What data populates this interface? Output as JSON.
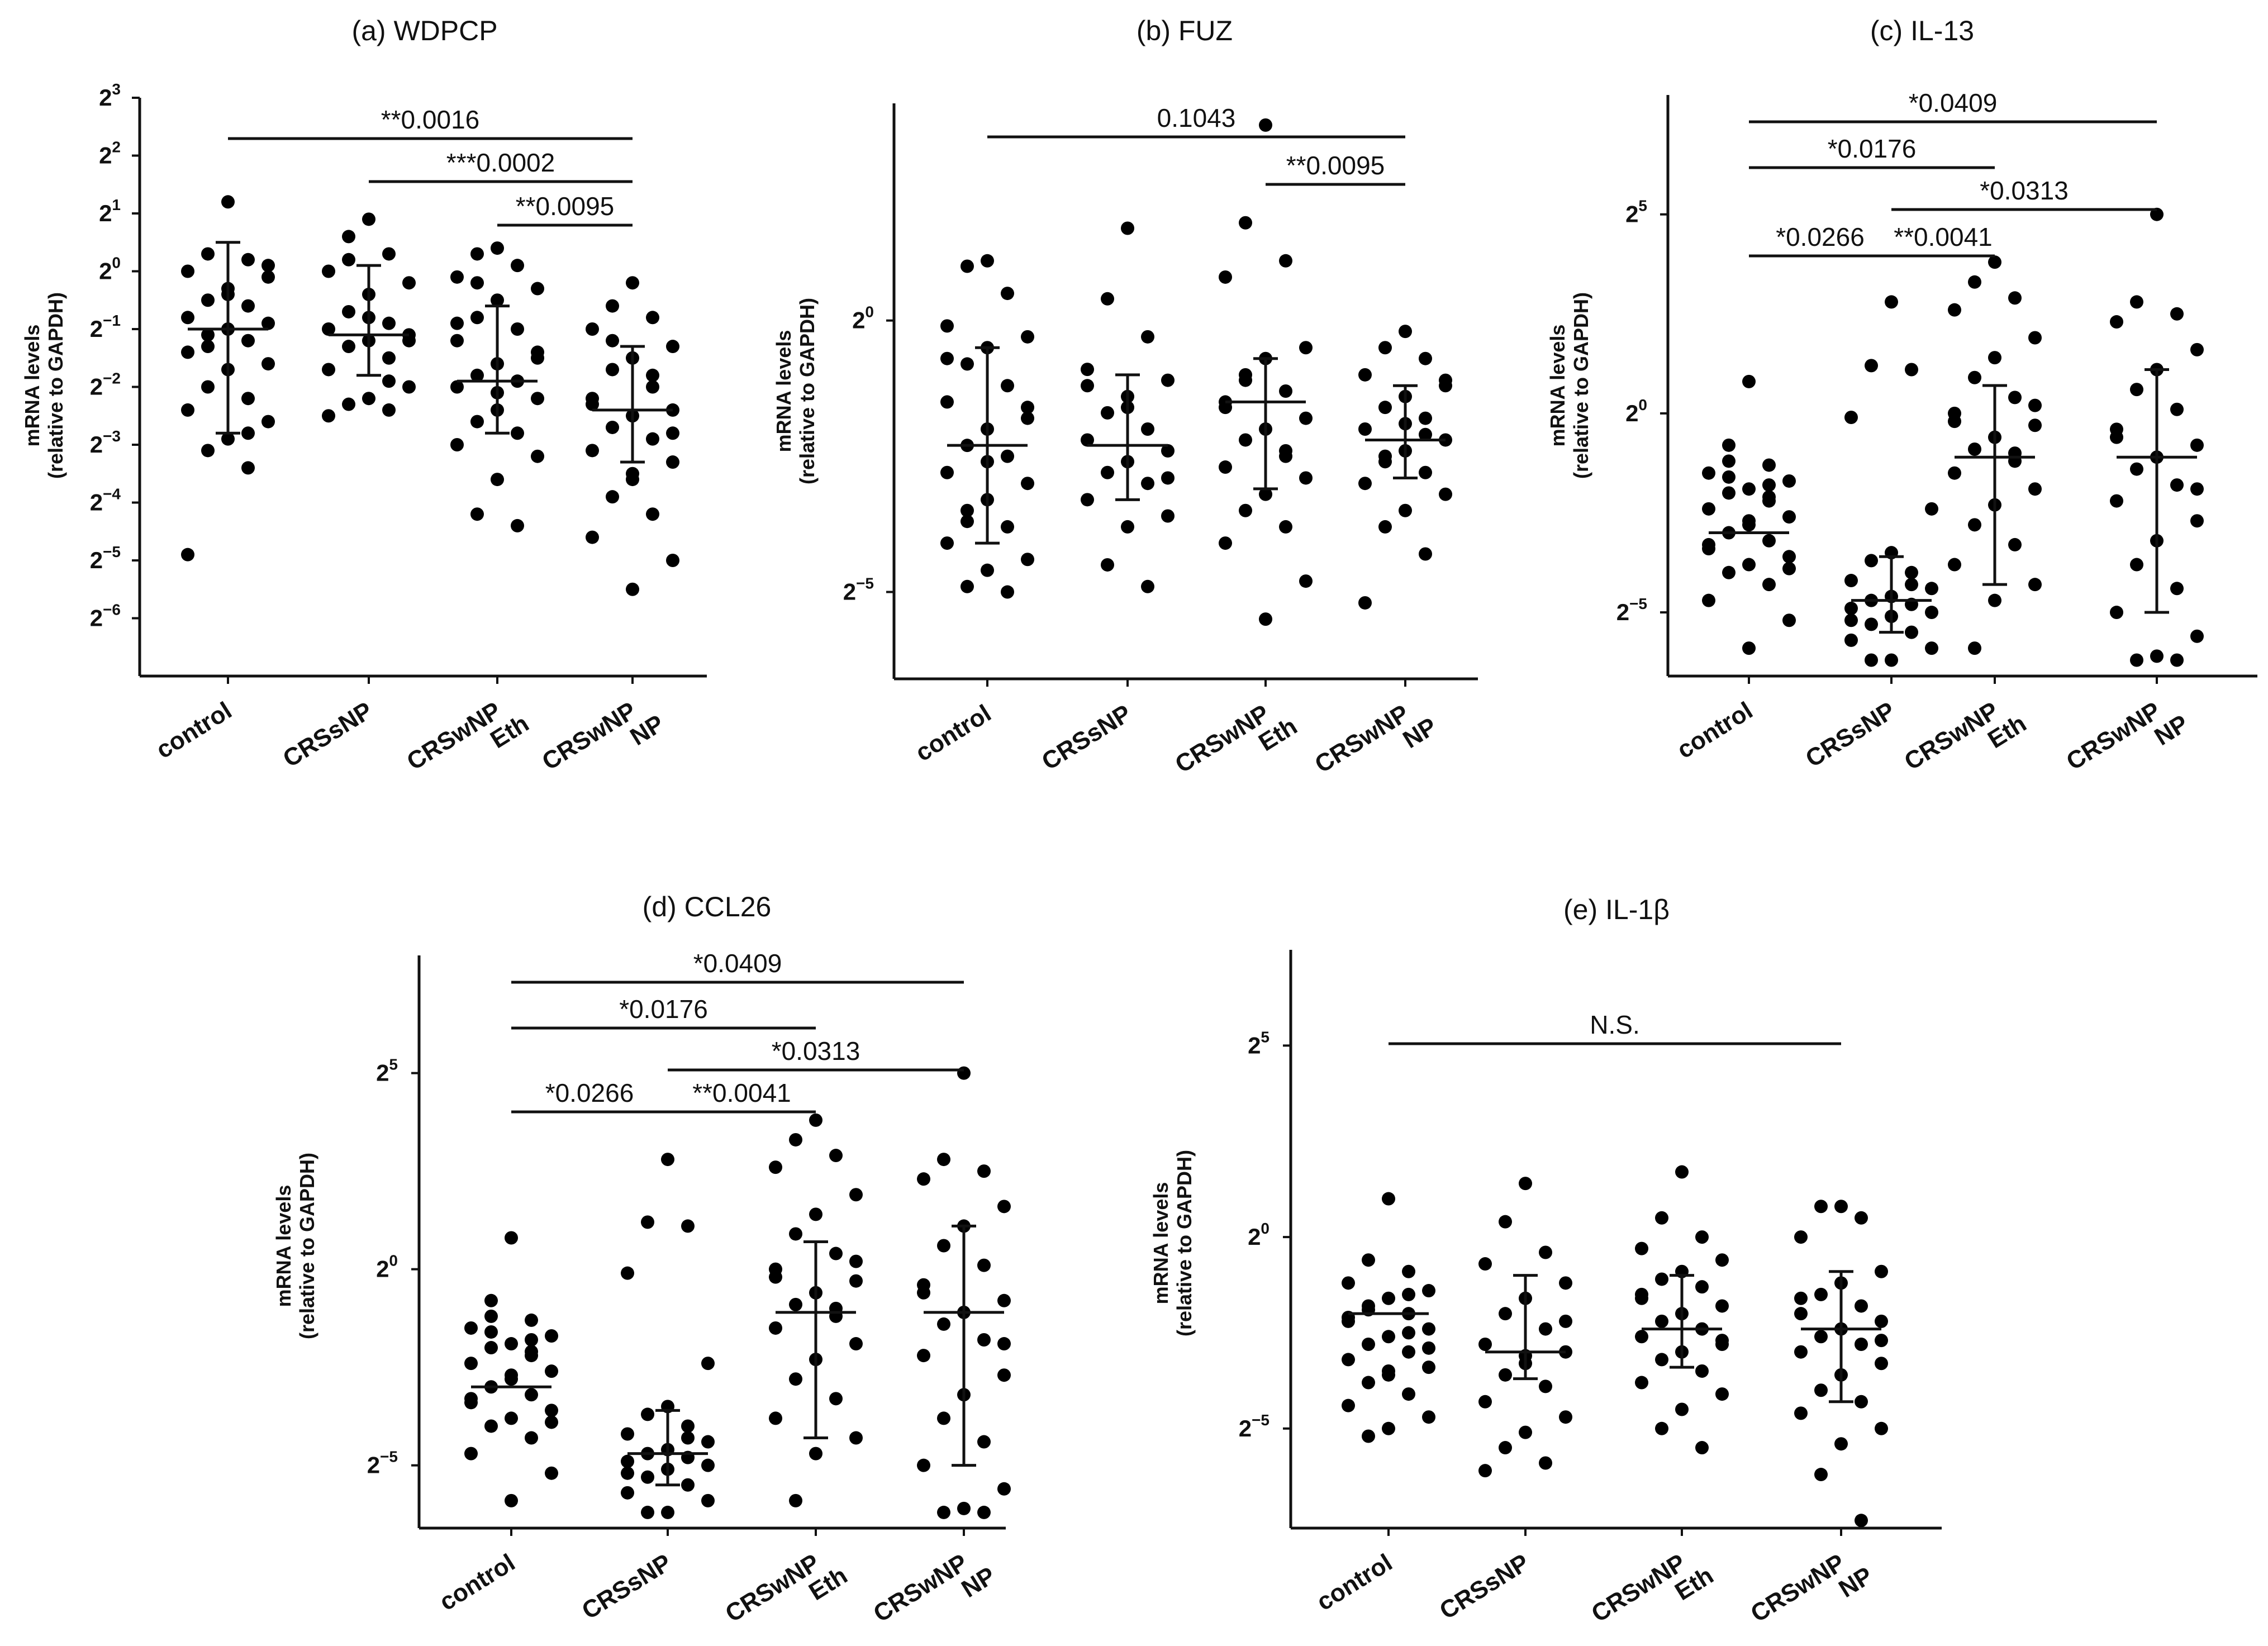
{
  "figure": {
    "y_axis_label_line1": "mRNA levels",
    "y_axis_label_line2": "(relative to GAPDH)",
    "group_labels": [
      [
        "control"
      ],
      [
        "CRSsNP"
      ],
      [
        "CRSwNP",
        "Eth"
      ],
      [
        "CRSwNP",
        "NP"
      ]
    ]
  },
  "chart_data": [
    {
      "id": "a",
      "type": "scatter",
      "title": "(a) WDPCP",
      "ylabel": "mRNA levels (relative to GAPDH)",
      "yscale": "log2",
      "ylim_exp": [
        -7,
        3
      ],
      "ytick_exps": [
        3,
        2,
        1,
        0,
        -1,
        -2,
        -3,
        -4,
        -5,
        -6
      ],
      "categories": [
        "control",
        "CRSsNP",
        "CRSwNP Eth",
        "CRSwNP NP"
      ],
      "series": [
        {
          "name": "control",
          "median_exp": -1.0,
          "q1_exp": -2.8,
          "q3_exp": 0.5,
          "points_exp": [
            1.2,
            0.3,
            0.2,
            0.0,
            -0.1,
            -0.3,
            -0.5,
            -0.6,
            -0.8,
            -0.9,
            -1.0,
            -1.1,
            -1.2,
            -1.4,
            -1.6,
            -1.7,
            -2.0,
            -2.2,
            -2.4,
            -2.6,
            -2.9,
            -3.1,
            -3.4,
            -4.9,
            0.1,
            -0.4,
            -1.3,
            -2.8
          ]
        },
        {
          "name": "CRSsNP",
          "median_exp": -1.1,
          "q1_exp": -1.8,
          "q3_exp": 0.1,
          "points_exp": [
            0.9,
            0.6,
            0.3,
            0.0,
            -0.2,
            -0.4,
            -0.7,
            -0.9,
            -1.0,
            -1.1,
            -1.2,
            -1.3,
            -1.5,
            -1.7,
            -2.0,
            -2.2,
            -2.3,
            -2.4,
            -2.5,
            -1.2,
            -0.8,
            0.2,
            -1.9
          ]
        },
        {
          "name": "CRSwNP Eth",
          "median_exp": -1.9,
          "q1_exp": -2.8,
          "q3_exp": -0.6,
          "points_exp": [
            0.4,
            0.3,
            0.1,
            -0.1,
            -0.3,
            -0.5,
            -0.8,
            -1.0,
            -1.2,
            -1.4,
            -1.6,
            -1.8,
            -1.9,
            -2.0,
            -2.2,
            -2.4,
            -2.6,
            -2.8,
            -3.0,
            -3.2,
            -3.6,
            -4.2,
            -4.4,
            -0.9,
            -1.5,
            -2.1,
            -0.2
          ]
        },
        {
          "name": "CRSwNP NP",
          "median_exp": -2.4,
          "q1_exp": -3.3,
          "q3_exp": -1.3,
          "points_exp": [
            -0.2,
            -0.6,
            -0.8,
            -1.0,
            -1.3,
            -1.5,
            -1.7,
            -2.0,
            -2.2,
            -2.4,
            -2.5,
            -2.7,
            -2.9,
            -3.1,
            -3.3,
            -3.5,
            -3.9,
            -4.2,
            -4.6,
            -5.0,
            -5.5,
            -1.2,
            -1.8,
            -2.3,
            -2.8,
            -3.6
          ]
        }
      ],
      "significance": [
        {
          "label": "**0.0016",
          "from": 0,
          "to": 3
        },
        {
          "label": "***0.0002",
          "from": 1,
          "to": 3
        },
        {
          "label": "**0.0095",
          "from": 2,
          "to": 3
        }
      ]
    },
    {
      "id": "b",
      "type": "scatter",
      "title": "(b) FUZ",
      "ylabel": "mRNA levels (relative to GAPDH)",
      "yscale": "log2",
      "ylim_exp": [
        -6.6,
        4
      ],
      "ytick_exps": [
        0,
        -5
      ],
      "categories": [
        "control",
        "CRSsNP",
        "CRSwNP Eth",
        "CRSwNP NP"
      ],
      "series": [
        {
          "name": "control",
          "median_exp": -2.3,
          "q1_exp": -4.1,
          "q3_exp": -0.5,
          "points_exp": [
            1.1,
            1.0,
            0.5,
            -0.1,
            -0.3,
            -0.5,
            -0.8,
            -1.2,
            -1.5,
            -1.8,
            -2.0,
            -2.3,
            -2.5,
            -2.8,
            -3.0,
            -3.3,
            -3.5,
            -3.8,
            -4.1,
            -4.4,
            -4.6,
            -4.9,
            -5.0,
            -0.7,
            -1.6,
            -2.6,
            -3.7
          ]
        },
        {
          "name": "CRSsNP",
          "median_exp": -2.3,
          "q1_exp": -3.3,
          "q3_exp": -1.0,
          "points_exp": [
            1.7,
            0.4,
            -0.3,
            -0.9,
            -1.1,
            -1.4,
            -1.7,
            -2.0,
            -2.2,
            -2.4,
            -2.6,
            -2.8,
            -3.0,
            -3.3,
            -3.6,
            -3.8,
            -4.5,
            -4.9,
            -1.2,
            -2.9,
            -1.6
          ]
        },
        {
          "name": "CRSwNP Eth",
          "median_exp": -1.5,
          "q1_exp": -3.1,
          "q3_exp": -0.7,
          "points_exp": [
            3.6,
            1.8,
            1.1,
            0.8,
            -0.5,
            -0.7,
            -1.0,
            -1.3,
            -1.5,
            -1.8,
            -2.0,
            -2.2,
            -2.5,
            -2.7,
            -2.9,
            -3.2,
            -3.5,
            -3.8,
            -4.1,
            -4.8,
            -5.5,
            -1.1,
            -2.4,
            -1.6
          ]
        },
        {
          "name": "CRSwNP NP",
          "median_exp": -2.2,
          "q1_exp": -2.9,
          "q3_exp": -1.2,
          "points_exp": [
            -0.2,
            -0.5,
            -0.7,
            -1.0,
            -1.2,
            -1.4,
            -1.6,
            -1.8,
            -2.0,
            -2.2,
            -2.4,
            -2.6,
            -2.8,
            -3.0,
            -3.2,
            -3.5,
            -3.8,
            -4.3,
            -5.2,
            -1.1,
            -1.9,
            -2.5,
            -2.1
          ]
        }
      ],
      "significance": [
        {
          "label": "0.1043",
          "from": 0,
          "to": 3
        },
        {
          "label": "**0.0095",
          "from": 2,
          "to": 3
        }
      ]
    },
    {
      "id": "c",
      "type": "scatter",
      "title": "(c) IL-13",
      "ylabel": "mRNA levels (relative to GAPDH)",
      "yscale": "log2",
      "ylim_exp": [
        -6.6,
        8
      ],
      "ytick_exps": [
        5,
        0,
        -5
      ],
      "categories": [
        "control",
        "CRSsNP",
        "CRSwNP Eth",
        "CRSwNP NP"
      ],
      "series": [
        {
          "name": "control",
          "median_exp": -3.0,
          "q1_exp": -3.0,
          "q3_exp": -3.0,
          "points_exp": [
            0.8,
            -0.8,
            -1.3,
            -1.5,
            -1.7,
            -1.9,
            -2.0,
            -2.2,
            -2.4,
            -2.6,
            -2.8,
            -3.0,
            -3.2,
            -3.4,
            -3.6,
            -3.8,
            -4.0,
            -4.3,
            -4.7,
            -5.2,
            -5.9,
            -1.6,
            -2.1,
            -3.3,
            -3.9,
            -2.7,
            -1.2,
            -1.8
          ]
        },
        {
          "name": "CRSsNP",
          "median_exp": -4.7,
          "q1_exp": -5.5,
          "q3_exp": -3.6,
          "points_exp": [
            2.8,
            1.2,
            1.1,
            -0.1,
            -2.4,
            -3.5,
            -3.7,
            -4.0,
            -4.2,
            -4.4,
            -4.6,
            -4.7,
            -4.8,
            -4.9,
            -5.0,
            -5.1,
            -5.3,
            -5.5,
            -5.7,
            -5.9,
            -6.2,
            -6.2,
            -4.3,
            -5.2
          ]
        },
        {
          "name": "CRSwNP Eth",
          "median_exp": -1.1,
          "q1_exp": -4.3,
          "q3_exp": 0.7,
          "points_exp": [
            3.8,
            3.3,
            2.9,
            2.6,
            1.9,
            1.4,
            0.9,
            0.4,
            0.0,
            -0.3,
            -0.6,
            -0.9,
            -1.2,
            -1.5,
            -1.9,
            -2.3,
            -2.8,
            -3.3,
            -3.8,
            -4.3,
            -4.7,
            -5.9,
            -1.0,
            -0.2,
            0.2
          ]
        },
        {
          "name": "CRSwNP NP",
          "median_exp": -1.1,
          "q1_exp": -5.0,
          "q3_exp": 1.1,
          "points_exp": [
            5.0,
            2.8,
            2.5,
            2.3,
            1.6,
            1.1,
            0.6,
            0.1,
            -0.4,
            -0.8,
            -1.1,
            -1.4,
            -1.8,
            -2.2,
            -2.7,
            -3.2,
            -3.8,
            -4.4,
            -5.0,
            -5.6,
            -6.1,
            -6.2,
            -6.2,
            -0.6,
            -1.9
          ]
        }
      ],
      "significance": [
        {
          "label": "*0.0409",
          "from": 0,
          "to": 3
        },
        {
          "label": "*0.0176",
          "from": 0,
          "to": 2
        },
        {
          "label": "*0.0313",
          "from": 1,
          "to": 3
        },
        {
          "label": "*0.0266",
          "from": 0,
          "to": 1
        },
        {
          "label": "**0.0041",
          "from": 1,
          "to": 2
        }
      ]
    },
    {
      "id": "d",
      "type": "scatter",
      "title": "(d) CCL26",
      "ylabel": "mRNA levels (relative to GAPDH)",
      "yscale": "log2",
      "ylim_exp": [
        -6.6,
        8
      ],
      "ytick_exps": [
        5,
        0,
        -5
      ],
      "categories": [
        "control",
        "CRSsNP",
        "CRSwNP Eth",
        "CRSwNP NP"
      ],
      "series": [
        {
          "name": "control",
          "median_exp": -3.0,
          "q1_exp": -3.0,
          "q3_exp": -3.0,
          "points_exp": [
            0.8,
            -0.8,
            -1.3,
            -1.5,
            -1.7,
            -1.9,
            -2.0,
            -2.2,
            -2.4,
            -2.6,
            -2.8,
            -3.0,
            -3.2,
            -3.4,
            -3.6,
            -3.8,
            -4.0,
            -4.3,
            -4.7,
            -5.2,
            -5.9,
            -1.6,
            -2.1,
            -3.3,
            -3.9,
            -2.7,
            -1.2,
            -1.8
          ]
        },
        {
          "name": "CRSsNP",
          "median_exp": -4.7,
          "q1_exp": -5.5,
          "q3_exp": -3.6,
          "points_exp": [
            2.8,
            1.2,
            1.1,
            -0.1,
            -2.4,
            -3.5,
            -3.7,
            -4.0,
            -4.2,
            -4.4,
            -4.6,
            -4.7,
            -4.8,
            -4.9,
            -5.0,
            -5.1,
            -5.3,
            -5.5,
            -5.7,
            -5.9,
            -6.2,
            -6.2,
            -4.3,
            -5.2
          ]
        },
        {
          "name": "CRSwNP Eth",
          "median_exp": -1.1,
          "q1_exp": -4.3,
          "q3_exp": 0.7,
          "points_exp": [
            3.8,
            3.3,
            2.9,
            2.6,
            1.9,
            1.4,
            0.9,
            0.4,
            0.0,
            -0.3,
            -0.6,
            -0.9,
            -1.2,
            -1.5,
            -1.9,
            -2.3,
            -2.8,
            -3.3,
            -3.8,
            -4.3,
            -4.7,
            -5.9,
            -1.0,
            -0.2,
            0.2
          ]
        },
        {
          "name": "CRSwNP NP",
          "median_exp": -1.1,
          "q1_exp": -5.0,
          "q3_exp": 1.1,
          "points_exp": [
            5.0,
            2.8,
            2.5,
            2.3,
            1.6,
            1.1,
            0.6,
            0.1,
            -0.4,
            -0.8,
            -1.1,
            -1.4,
            -1.8,
            -2.2,
            -2.7,
            -3.2,
            -3.8,
            -4.4,
            -5.0,
            -5.6,
            -6.1,
            -6.2,
            -6.2,
            -0.6,
            -1.9
          ]
        }
      ],
      "significance": [
        {
          "label": "*0.0409",
          "from": 0,
          "to": 3
        },
        {
          "label": "*0.0176",
          "from": 0,
          "to": 2
        },
        {
          "label": "*0.0313",
          "from": 1,
          "to": 3
        },
        {
          "label": "*0.0266",
          "from": 0,
          "to": 1
        },
        {
          "label": "**0.0041",
          "from": 1,
          "to": 2
        }
      ]
    },
    {
      "id": "e",
      "type": "scatter",
      "title": "(e) IL-1β",
      "ylabel": "mRNA levels (relative to GAPDH)",
      "yscale": "log2",
      "ylim_exp": [
        -7.6,
        7.5
      ],
      "ytick_exps": [
        5,
        0,
        -5
      ],
      "categories": [
        "control",
        "CRSsNP",
        "CRSwNP Eth",
        "CRSwNP NP"
      ],
      "series": [
        {
          "name": "control",
          "median_exp": -2.0,
          "q1_exp": -2.0,
          "q3_exp": -2.0,
          "points_exp": [
            1.0,
            -0.6,
            -0.9,
            -1.2,
            -1.4,
            -1.6,
            -1.8,
            -2.0,
            -2.2,
            -2.4,
            -2.6,
            -2.8,
            -3.0,
            -3.2,
            -3.4,
            -3.6,
            -3.8,
            -4.1,
            -4.4,
            -4.7,
            -5.0,
            -5.2,
            -1.5,
            -2.1,
            -2.9,
            -3.5,
            -1.9,
            -2.5
          ]
        },
        {
          "name": "CRSsNP",
          "median_exp": -3.0,
          "q1_exp": -3.7,
          "q3_exp": -1.0,
          "points_exp": [
            1.4,
            0.4,
            -0.4,
            -0.7,
            -1.2,
            -1.6,
            -2.0,
            -2.4,
            -2.8,
            -3.0,
            -3.3,
            -3.6,
            -3.9,
            -4.3,
            -4.7,
            -5.1,
            -5.5,
            -5.9,
            -6.1,
            -2.2,
            -3.1
          ]
        },
        {
          "name": "CRSwNP Eth",
          "median_exp": -2.4,
          "q1_exp": -3.4,
          "q3_exp": -1.0,
          "points_exp": [
            1.7,
            0.5,
            0.0,
            -0.3,
            -0.6,
            -0.9,
            -1.1,
            -1.3,
            -1.6,
            -1.8,
            -2.0,
            -2.2,
            -2.4,
            -2.6,
            -2.8,
            -3.0,
            -3.2,
            -3.5,
            -3.8,
            -4.1,
            -4.5,
            -5.0,
            -5.5,
            -1.5,
            -2.7
          ]
        },
        {
          "name": "CRSwNP NP",
          "median_exp": -2.4,
          "q1_exp": -4.3,
          "q3_exp": -0.9,
          "points_exp": [
            0.8,
            0.8,
            0.5,
            0.0,
            -0.9,
            -1.2,
            -1.5,
            -1.8,
            -2.0,
            -2.2,
            -2.4,
            -2.6,
            -2.8,
            -3.0,
            -3.3,
            -3.6,
            -4.0,
            -4.3,
            -4.6,
            -5.0,
            -5.4,
            -6.2,
            -7.4,
            -1.6,
            -2.7
          ]
        }
      ],
      "significance": [
        {
          "label": "N.S.",
          "from": 0,
          "to": 3
        }
      ]
    }
  ]
}
